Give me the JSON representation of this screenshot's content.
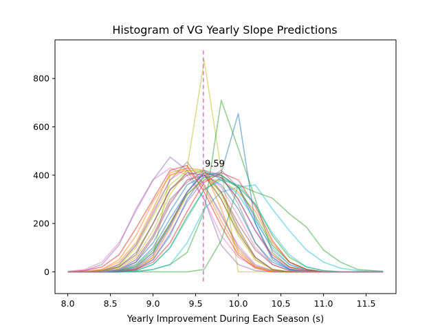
{
  "chart_data": {
    "type": "line",
    "title": "Histogram of VG Yearly Slope Predictions",
    "xlabel": "Yearly Improvement During Each Season (s)",
    "ylabel": "",
    "xlim": [
      7.85,
      11.85
    ],
    "ylim": [
      -90,
      960
    ],
    "x_ticks": [
      8.0,
      8.5,
      9.0,
      9.5,
      10.0,
      10.5,
      11.0,
      11.5
    ],
    "x_tick_labels": [
      "8.0",
      "8.5",
      "9.0",
      "9.5",
      "10.0",
      "10.5",
      "11.0",
      "11.5"
    ],
    "y_ticks": [
      0,
      200,
      400,
      600,
      800
    ],
    "y_tick_labels": [
      "0",
      "200",
      "400",
      "600",
      "800"
    ],
    "grid": false,
    "legend": "none",
    "mean_line": {
      "x": 9.59,
      "y_range": [
        -40,
        920
      ],
      "color": "#e377c2"
    },
    "annotation": {
      "text": "9.59",
      "x": 9.6,
      "y": 440
    },
    "x": [
      8.0,
      8.2,
      8.4,
      8.6,
      8.8,
      9.0,
      9.2,
      9.4,
      9.6,
      9.8,
      10.0,
      10.2,
      10.4,
      10.6,
      10.8,
      11.0,
      11.2,
      11.4,
      11.7
    ],
    "series": [
      {
        "color": "#bcbd22",
        "values": [
          0,
          0,
          0,
          2,
          10,
          60,
          400,
          430,
          875,
          420,
          0,
          0,
          0,
          0,
          0,
          0,
          0,
          0,
          0
        ]
      },
      {
        "color": "#2ca02c",
        "values": [
          0,
          0,
          0,
          0,
          2,
          10,
          30,
          80,
          250,
          710,
          510,
          300,
          80,
          20,
          5,
          0,
          0,
          0,
          0
        ]
      },
      {
        "color": "#1f77b4",
        "values": [
          0,
          0,
          0,
          2,
          10,
          50,
          150,
          300,
          400,
          410,
          655,
          200,
          50,
          10,
          2,
          0,
          0,
          0,
          0
        ]
      },
      {
        "color": "#e377c2",
        "values": [
          2,
          10,
          40,
          120,
          250,
          380,
          430,
          400,
          300,
          150,
          60,
          20,
          5,
          0,
          0,
          0,
          0,
          0,
          0
        ]
      },
      {
        "color": "#9467bd",
        "values": [
          0,
          5,
          30,
          110,
          260,
          380,
          475,
          420,
          300,
          110,
          30,
          5,
          0,
          0,
          0,
          0,
          0,
          0,
          0
        ]
      },
      {
        "color": "#2ca02c",
        "values": [
          0,
          0,
          0,
          0,
          0,
          0,
          0,
          0,
          10,
          130,
          360,
          330,
          305,
          240,
          185,
          90,
          40,
          10,
          2
        ]
      },
      {
        "color": "#17becf",
        "values": [
          0,
          0,
          0,
          0,
          0,
          10,
          30,
          120,
          260,
          330,
          350,
          360,
          260,
          170,
          90,
          40,
          15,
          5,
          2
        ]
      },
      {
        "color": "#d62728",
        "values": [
          0,
          5,
          20,
          70,
          180,
          300,
          420,
          440,
          330,
          190,
          70,
          15,
          0,
          0,
          0,
          0,
          0,
          0,
          0
        ]
      },
      {
        "color": "#ff7f0e",
        "values": [
          0,
          2,
          10,
          40,
          120,
          260,
          410,
          430,
          420,
          260,
          80,
          20,
          0,
          0,
          0,
          0,
          0,
          0,
          0
        ]
      },
      {
        "color": "#8c564b",
        "values": [
          0,
          0,
          5,
          20,
          70,
          200,
          340,
          400,
          420,
          330,
          180,
          60,
          10,
          0,
          0,
          0,
          0,
          0,
          0
        ]
      },
      {
        "color": "#7f7f7f",
        "values": [
          0,
          0,
          2,
          10,
          50,
          150,
          300,
          370,
          420,
          400,
          280,
          120,
          30,
          5,
          0,
          0,
          0,
          0,
          0
        ]
      },
      {
        "color": "#1f77b4",
        "values": [
          0,
          0,
          0,
          5,
          30,
          100,
          220,
          330,
          410,
          400,
          350,
          200,
          60,
          10,
          0,
          0,
          0,
          0,
          0
        ]
      },
      {
        "color": "#ff7f0e",
        "values": [
          0,
          0,
          0,
          2,
          15,
          60,
          180,
          320,
          380,
          380,
          330,
          250,
          120,
          40,
          10,
          0,
          0,
          0,
          0
        ]
      },
      {
        "color": "#2ca02c",
        "values": [
          0,
          0,
          0,
          0,
          5,
          30,
          100,
          230,
          340,
          390,
          350,
          280,
          150,
          60,
          20,
          5,
          0,
          0,
          0
        ]
      },
      {
        "color": "#d62728",
        "values": [
          0,
          0,
          0,
          2,
          20,
          80,
          200,
          330,
          410,
          390,
          300,
          170,
          70,
          20,
          5,
          0,
          0,
          0,
          0
        ]
      },
      {
        "color": "#9467bd",
        "values": [
          0,
          0,
          0,
          0,
          10,
          50,
          160,
          290,
          380,
          420,
          350,
          220,
          90,
          30,
          5,
          0,
          0,
          0,
          0
        ]
      },
      {
        "color": "#8c564b",
        "values": [
          0,
          0,
          0,
          5,
          40,
          140,
          280,
          380,
          400,
          330,
          200,
          90,
          30,
          5,
          0,
          0,
          0,
          0,
          0
        ]
      },
      {
        "color": "#e377c2",
        "values": [
          0,
          0,
          5,
          30,
          110,
          250,
          380,
          430,
          360,
          230,
          110,
          30,
          5,
          0,
          0,
          0,
          0,
          0,
          0
        ]
      },
      {
        "color": "#bcbd22",
        "values": [
          0,
          0,
          5,
          25,
          100,
          230,
          360,
          420,
          410,
          300,
          150,
          50,
          10,
          0,
          0,
          0,
          0,
          0,
          0
        ]
      },
      {
        "color": "#17becf",
        "values": [
          0,
          0,
          0,
          5,
          20,
          80,
          190,
          330,
          420,
          380,
          320,
          210,
          100,
          30,
          10,
          0,
          0,
          0,
          0
        ]
      },
      {
        "color": "#7f7f7f",
        "values": [
          0,
          0,
          5,
          30,
          110,
          240,
          380,
          455,
          360,
          240,
          100,
          25,
          5,
          0,
          0,
          0,
          0,
          0,
          0
        ]
      },
      {
        "color": "#2ca02c",
        "values": [
          0,
          0,
          0,
          5,
          25,
          90,
          200,
          320,
          390,
          400,
          350,
          230,
          110,
          40,
          10,
          0,
          0,
          0,
          0
        ]
      },
      {
        "color": "#1f77b4",
        "values": [
          0,
          0,
          0,
          10,
          40,
          120,
          250,
          360,
          400,
          360,
          260,
          120,
          40,
          10,
          0,
          0,
          0,
          0,
          0
        ]
      },
      {
        "color": "#ff7f0e",
        "values": [
          0,
          0,
          10,
          50,
          150,
          290,
          400,
          420,
          350,
          210,
          90,
          20,
          0,
          0,
          0,
          0,
          0,
          0,
          0
        ]
      },
      {
        "color": "#d62728",
        "values": [
          0,
          0,
          0,
          0,
          10,
          40,
          120,
          250,
          370,
          410,
          380,
          270,
          130,
          40,
          10,
          0,
          0,
          0,
          0
        ]
      },
      {
        "color": "#9467bd",
        "values": [
          0,
          0,
          0,
          2,
          15,
          70,
          190,
          330,
          410,
          390,
          300,
          170,
          60,
          15,
          0,
          0,
          0,
          0,
          0
        ]
      },
      {
        "color": "#bcbd22",
        "values": [
          0,
          0,
          2,
          15,
          60,
          170,
          320,
          420,
          420,
          320,
          170,
          50,
          10,
          0,
          0,
          0,
          0,
          0,
          0
        ]
      },
      {
        "color": "#17becf",
        "values": [
          0,
          0,
          0,
          0,
          5,
          30,
          100,
          220,
          340,
          380,
          360,
          280,
          160,
          70,
          20,
          5,
          0,
          0,
          0
        ]
      },
      {
        "color": "#8c564b",
        "values": [
          0,
          0,
          2,
          20,
          80,
          200,
          340,
          410,
          400,
          300,
          160,
          60,
          10,
          0,
          0,
          0,
          0,
          0,
          0
        ]
      },
      {
        "color": "#e377c2",
        "values": [
          0,
          0,
          0,
          10,
          50,
          150,
          290,
          380,
          410,
          350,
          230,
          100,
          30,
          5,
          0,
          0,
          0,
          0,
          0
        ]
      }
    ]
  }
}
